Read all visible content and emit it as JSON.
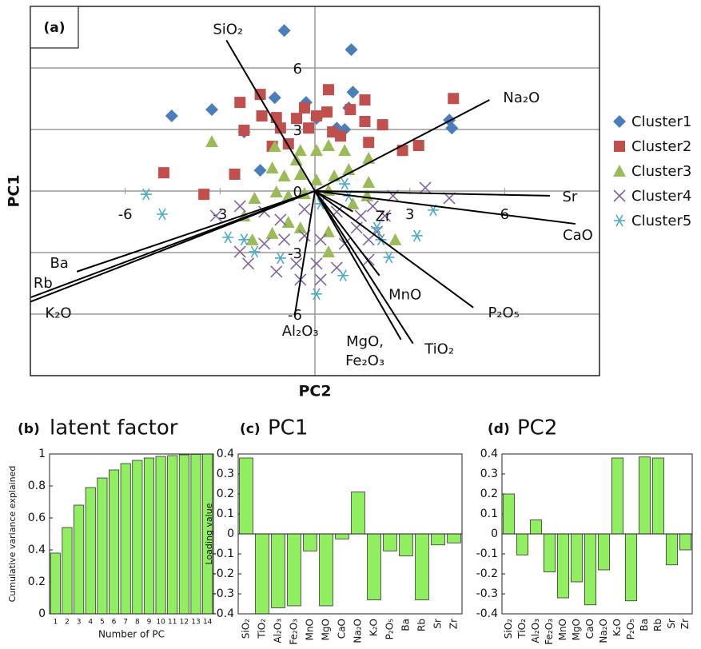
{
  "chart_data": [
    {
      "type": "scatter",
      "panel_label": "(a)",
      "x_label": "PC2",
      "y_label": "PC1",
      "xlim": [
        -9,
        9
      ],
      "ylim": [
        -9,
        9
      ],
      "xticks": [
        -6,
        -3,
        3,
        6
      ],
      "yticks": [
        -6,
        -3,
        0,
        3,
        6
      ],
      "grid": true,
      "series": [
        {
          "name": "Cluster1",
          "color": "#4a7ebb",
          "marker": "diamond",
          "x": [
            -0.97,
            1.15,
            -4.53,
            -3.26,
            -1.27,
            1.2,
            1.07,
            -2.24,
            -0.28,
            0.69,
            0.94,
            4.25,
            4.33,
            -1.73,
            0.05
          ],
          "values": [
            7.82,
            6.89,
            3.66,
            3.97,
            4.55,
            4.82,
            4.05,
            2.88,
            4.32,
            3.07,
            3.0,
            3.46,
            3.07,
            1.01,
            3.54
          ]
        },
        {
          "name": "Cluster2",
          "color": "#c0504d",
          "marker": "square",
          "x": [
            -1.73,
            0.43,
            -2.37,
            4.38,
            -0.33,
            1.12,
            1.58,
            -1.68,
            -1.22,
            -0.58,
            0.05,
            0.38,
            1.58,
            2.14,
            -2.24,
            -1.09,
            -0.2,
            0.56,
            -0.84,
            1.7,
            2.77,
            3.28,
            -4.78,
            -3.51,
            -2.54,
            -1.35,
            0.81
          ],
          "values": [
            4.71,
            4.94,
            4.32,
            4.51,
            4.05,
            3.97,
            4.44,
            3.66,
            3.58,
            3.54,
            3.66,
            3.85,
            3.39,
            3.23,
            2.96,
            3.07,
            3.07,
            2.88,
            2.3,
            2.37,
            1.98,
            2.22,
            0.89,
            -0.16,
            0.82,
            2.18,
            2.68
          ]
        },
        {
          "name": "Cluster3",
          "color": "#9bbb59",
          "marker": "triangle",
          "x": [
            -3.26,
            -1.27,
            -0.46,
            0.05,
            0.43,
            0.94,
            1.7,
            -1.35,
            -0.97,
            -0.46,
            0.05,
            0.61,
            1.07,
            1.7,
            -1.91,
            -1.22,
            -0.84,
            -0.33,
            0.43,
            1.65,
            1.2,
            -2.24,
            -1.35,
            -0.46,
            0.43,
            -1.98,
            -0.84,
            2.54,
            0.43,
            -0.59
          ],
          "values": [
            2.41,
            2.18,
            1.98,
            1.98,
            2.22,
            1.98,
            1.6,
            1.13,
            0.74,
            0.82,
            0.54,
            0.74,
            1.05,
            0.43,
            -0.35,
            -0.04,
            -0.23,
            -0.12,
            0.04,
            -0.23,
            -0.62,
            -1.21,
            -2.06,
            -1.79,
            -1.98,
            -2.37,
            -1.52,
            -2.37,
            -2.96,
            1.52
          ]
        },
        {
          "name": "Cluster4",
          "color": "#8064a2",
          "marker": "x",
          "x": [
            3.49,
            2.47,
            4.25,
            1.83,
            -3.13,
            -2.37,
            -1.6,
            -1.09,
            -0.33,
            0.69,
            1.45,
            2.21,
            -2.37,
            -1.6,
            -0.97,
            -0.33,
            0.18,
            0.94,
            1.7,
            -2.11,
            -1.22,
            -0.59,
            0.05,
            0.69,
            1.7,
            -0.46,
            0.18,
            1.32,
            1.96
          ],
          "values": [
            0.16,
            -0.23,
            -0.35,
            -0.74,
            -1.21,
            -0.74,
            -1.01,
            -1.4,
            -0.89,
            -1.01,
            -1.21,
            -1.21,
            -2.96,
            -2.57,
            -2.37,
            -2.18,
            -2.37,
            -2.57,
            -2.37,
            -3.54,
            -3.93,
            -3.54,
            -3.54,
            -3.74,
            -3.35,
            -4.32,
            -4.32,
            -1.79,
            -1.98
          ]
        },
        {
          "name": "Cluster5",
          "color": "#4bacc6",
          "marker": "asterisk",
          "x": [
            -5.34,
            -4.83,
            -2.75,
            -1.91,
            -2.24,
            -1.09,
            0.18,
            0.94,
            1.07,
            1.96,
            3.23,
            3.74,
            2.34,
            0.89,
            0.05,
            2.09
          ],
          "values": [
            -0.16,
            -1.13,
            -2.26,
            -2.96,
            -2.37,
            -3.27,
            -0.62,
            0.35,
            -0.23,
            -1.79,
            -2.18,
            -0.93,
            -3.23,
            -4.12,
            -5.02,
            -2.37
          ]
        }
      ],
      "vectors": [
        {
          "label": "SiO₂",
          "x": -2.8,
          "y": 7.35
        },
        {
          "label": "Na₂O",
          "x": 5.52,
          "y": 4.44
        },
        {
          "label": "Sr",
          "x": 7.43,
          "y": -0.23
        },
        {
          "label": "CaO",
          "x": 8.24,
          "y": -1.6
        },
        {
          "label": "P₂O₅",
          "x": 5.01,
          "y": -5.68
        },
        {
          "label": "TiO₂",
          "x": 3.1,
          "y": -7.43
        },
        {
          "label": [
            "MgO,",
            "Fe₂O₃"
          ],
          "x": 2.72,
          "y": -7.24
        },
        {
          "label": "MnO",
          "x": 2.04,
          "y": -4.12
        },
        {
          "label": "Zr",
          "x": 1.2,
          "y": -1.0
        },
        {
          "label": "Al₂O₃",
          "x": -0.64,
          "y": -6.07
        },
        {
          "label": "Ba",
          "x": -7.53,
          "y": -3.93
        },
        {
          "label": "Rb",
          "x": -8.98,
          "y": -5.18
        },
        {
          "label": "K₂O",
          "x": -9.0,
          "y": -5.4
        }
      ]
    },
    {
      "type": "bar",
      "panel_label": "(b)",
      "title": "latent factor",
      "x_label": "Number of PC",
      "y_label": "Cumulative variance explained",
      "categories": [
        "1",
        "2",
        "3",
        "4",
        "5",
        "6",
        "7",
        "8",
        "9",
        "10",
        "11",
        "12",
        "13",
        "14"
      ],
      "values": [
        0.38,
        0.54,
        0.68,
        0.79,
        0.85,
        0.9,
        0.94,
        0.96,
        0.975,
        0.985,
        0.99,
        0.995,
        0.998,
        1.0
      ],
      "color": "#90ee60",
      "ylim": [
        0,
        1
      ],
      "yticks": [
        0,
        0.2,
        0.4,
        0.6,
        0.8,
        1
      ]
    },
    {
      "type": "bar",
      "panel_label": "(c)",
      "title": "PC1",
      "y_label": "Loading value",
      "categories": [
        "SiO₂",
        "TiO₂",
        "Al₂O₃",
        "Fe₂O₃",
        "MnO",
        "MgO",
        "CaO",
        "Na₂O",
        "K₂O",
        "P₂O₅",
        "Ba",
        "Rb",
        "Sr",
        "Zr"
      ],
      "values": [
        0.38,
        -0.4,
        -0.37,
        -0.36,
        -0.085,
        -0.36,
        -0.025,
        0.21,
        -0.33,
        -0.085,
        -0.11,
        -0.33,
        -0.055,
        -0.045
      ],
      "color": "#90ee60",
      "ylim": [
        -0.4,
        0.4
      ],
      "yticks": [
        -0.4,
        -0.3,
        -0.2,
        -0.1,
        0,
        0.1,
        0.2,
        0.3,
        0.4
      ]
    },
    {
      "type": "bar",
      "panel_label": "(d)",
      "title": "PC2",
      "categories": [
        "SiO₂",
        "TiO₂",
        "Al₂O₃",
        "Fe₂O₃",
        "MnO",
        "MgO",
        "CaO",
        "Na₂O",
        "K₂O",
        "P₂O₅",
        "Ba",
        "Rb",
        "Sr",
        "Zr"
      ],
      "values": [
        0.2,
        -0.105,
        0.07,
        -0.19,
        -0.32,
        -0.24,
        -0.355,
        -0.18,
        0.38,
        -0.335,
        0.385,
        0.38,
        -0.155,
        -0.08
      ],
      "color": "#90ee60",
      "ylim": [
        -0.4,
        0.4
      ],
      "yticks": [
        -0.4,
        -0.3,
        -0.2,
        -0.1,
        0,
        0.1,
        0.2,
        0.3,
        0.4
      ]
    }
  ]
}
